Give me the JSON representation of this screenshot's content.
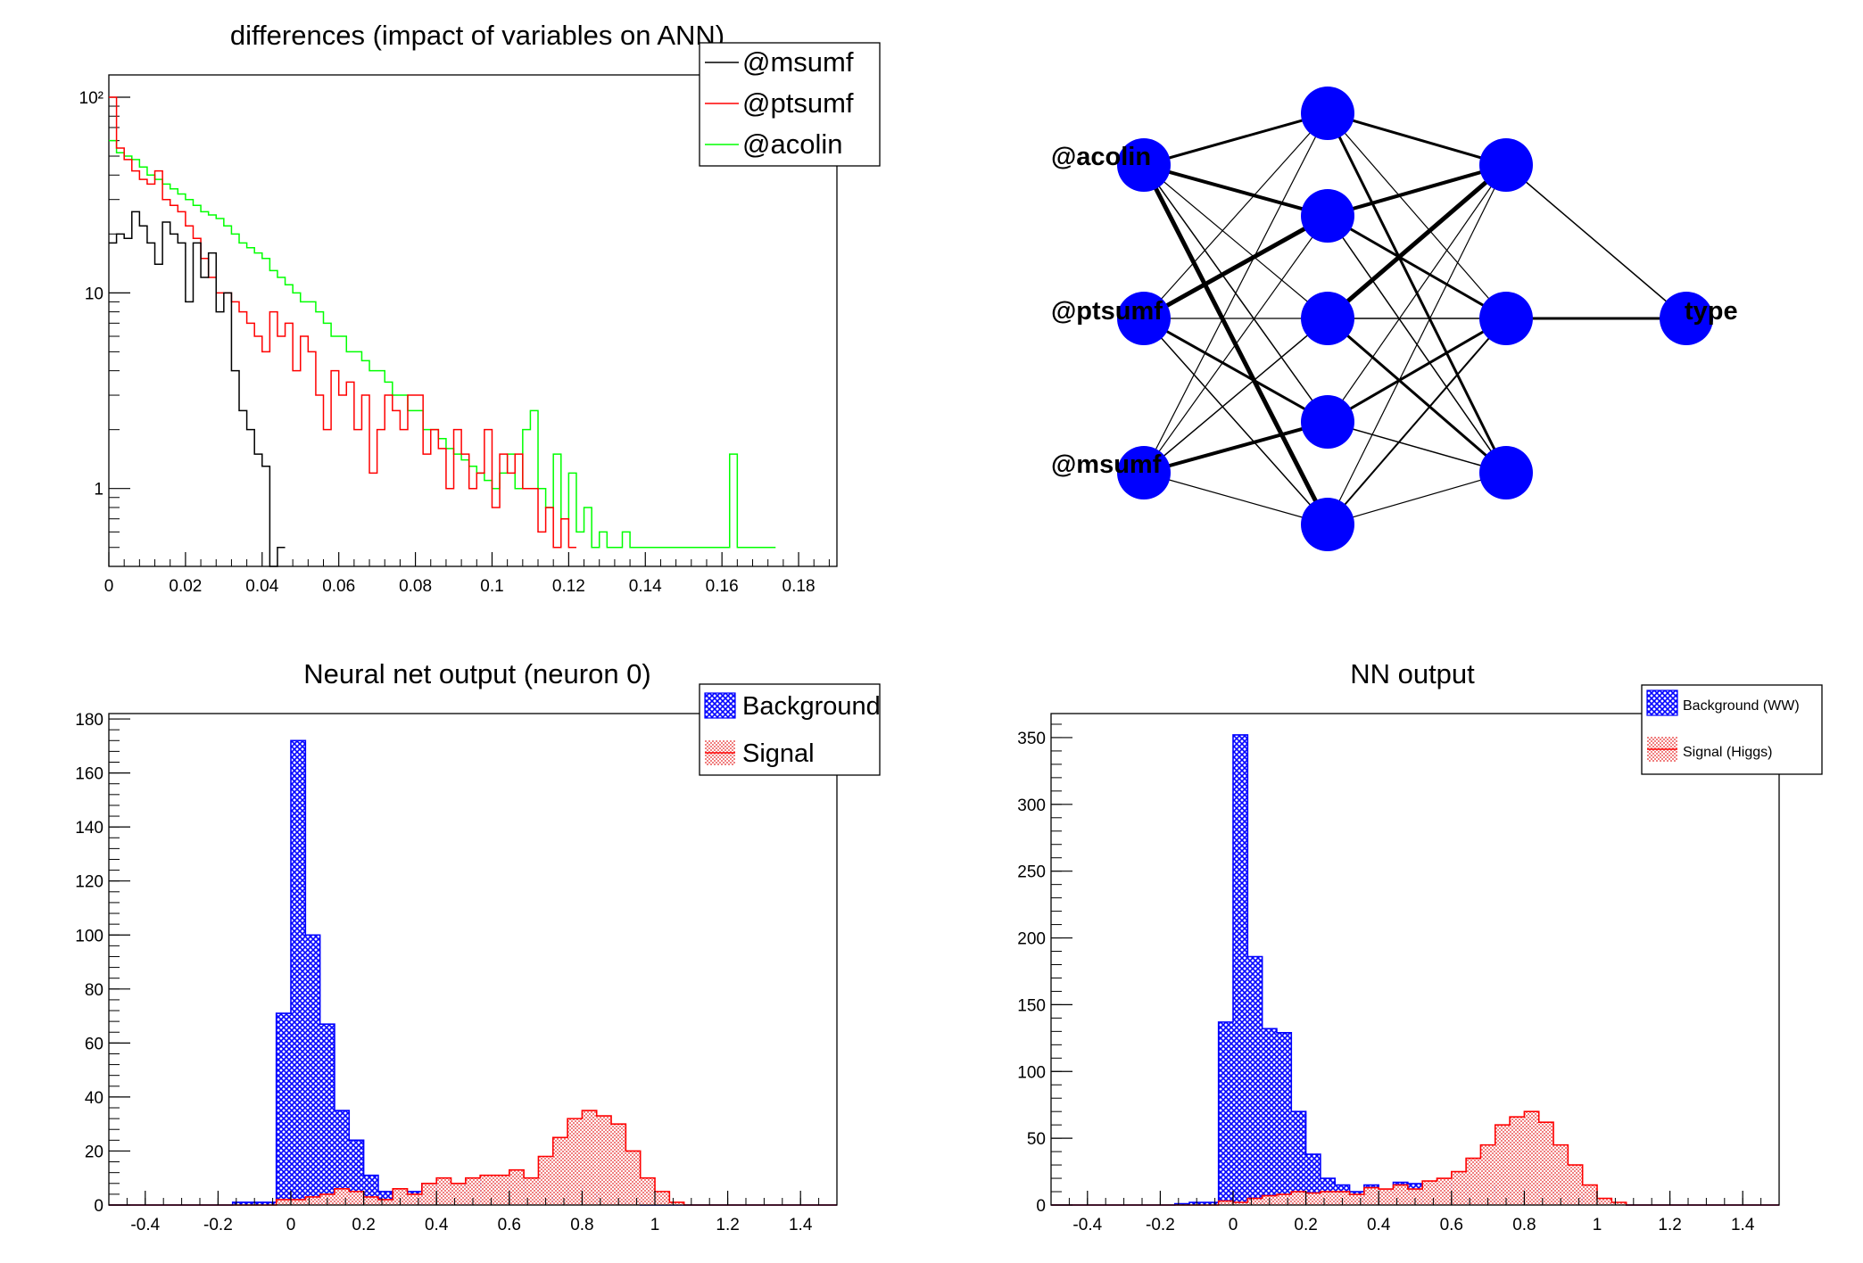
{
  "colors": {
    "black": "#000000",
    "red": "#ff0000",
    "green": "#00ff00",
    "blue": "#0000ff",
    "signal_fill": "#f08080",
    "bg_fill": "#2a2aff"
  },
  "chart_data": [
    {
      "type": "line",
      "title": "differences (impact of variables on ANN)",
      "xlabel": "",
      "ylabel": "",
      "xlim": [
        0,
        0.19
      ],
      "ylim": [
        0.4,
        130
      ],
      "log_y": true,
      "x_ticks": [
        "0",
        "0.02",
        "0.04",
        "0.06",
        "0.08",
        "0.1",
        "0.12",
        "0.14",
        "0.16",
        "0.18"
      ],
      "y_ticks": [
        "10²",
        "10",
        "1"
      ],
      "legend_position": "top-right",
      "bin_width": 0.002,
      "series": [
        {
          "name": "@msumf",
          "color": "#000000",
          "values": [
            18,
            20,
            19,
            26,
            22,
            18,
            14,
            23,
            20,
            18,
            9,
            18,
            12,
            16,
            8,
            10,
            4,
            2.5,
            2,
            1.5,
            1.3,
            0.4,
            0.5
          ]
        },
        {
          "name": "@ptsumf",
          "color": "#ff0000",
          "values": [
            100,
            55,
            48,
            42,
            38,
            36,
            42,
            30,
            28,
            26,
            22,
            19,
            15,
            12,
            10,
            10,
            9,
            8,
            7,
            6,
            5,
            8,
            6,
            7,
            4,
            6,
            5,
            3,
            2,
            4,
            3,
            3.5,
            2,
            3,
            1.2,
            2,
            3,
            2.5,
            2,
            3,
            3,
            1.5,
            2,
            1.6,
            1,
            2,
            1.5,
            1,
            1.2,
            2,
            0.8,
            1.5,
            1.2,
            1.5,
            1,
            1,
            0.6,
            0.8,
            0.5,
            0.7,
            0.5
          ]
        },
        {
          "name": "@acolin",
          "color": "#00ff00",
          "values": [
            60,
            52,
            50,
            48,
            44,
            40,
            38,
            36,
            34,
            32,
            30,
            28,
            26,
            25,
            24,
            22,
            20,
            18,
            17,
            16,
            15,
            13,
            12,
            11,
            10,
            9,
            9,
            8,
            7,
            6,
            6,
            5,
            5,
            4.5,
            4,
            4,
            3.5,
            3,
            3,
            2.5,
            2.5,
            2,
            2,
            1.8,
            1.6,
            1.5,
            1.4,
            1.3,
            1.2,
            1.1,
            1,
            1.2,
            1.5,
            1,
            2,
            2.5,
            1,
            0.8,
            1.5,
            0.7,
            1.2,
            0.6,
            0.8,
            0.5,
            0.6,
            0.5,
            0.5,
            0.6,
            0.5,
            0.5,
            0.5,
            0.5,
            0.5,
            0.5,
            0.5,
            0.5,
            0.5,
            0.5,
            0.5,
            0.5,
            0.5,
            1.5,
            0.5,
            0.5,
            0.5,
            0.5,
            0.5
          ]
        }
      ]
    },
    {
      "type": "diagram",
      "inputs": [
        "@acolin",
        "@ptsumf",
        "@msumf"
      ],
      "output": "type",
      "layers": [
        3,
        5,
        4,
        1
      ]
    },
    {
      "type": "histogram",
      "title": "Neural net output (neuron 0)",
      "xlabel": "",
      "ylabel": "",
      "xlim": [
        -0.5,
        1.5
      ],
      "ylim": [
        0,
        182
      ],
      "bin_width": 0.04,
      "bin_start": -0.16,
      "x_ticks": [
        "-0.4",
        "-0.2",
        "0",
        "0.2",
        "0.4",
        "0.6",
        "0.8",
        "1",
        "1.2",
        "1.4"
      ],
      "y_ticks": [
        "0",
        "20",
        "40",
        "60",
        "80",
        "100",
        "120",
        "140",
        "160",
        "180"
      ],
      "legend_position": "top-right",
      "series": [
        {
          "name": "Background",
          "color": "#0000ff",
          "values": [
            1,
            1,
            1,
            71,
            172,
            100,
            67,
            35,
            24,
            11,
            5,
            3,
            5,
            8,
            2,
            8,
            7,
            9,
            8,
            8,
            9,
            3,
            2,
            7,
            4,
            3,
            2,
            1,
            0,
            0,
            0
          ]
        },
        {
          "name": "Signal",
          "color": "#ff0000",
          "values": [
            0,
            0,
            0,
            2,
            2,
            3,
            4,
            6,
            5,
            3,
            2,
            6,
            4,
            8,
            10,
            8,
            10,
            11,
            11,
            13,
            10,
            18,
            25,
            32,
            35,
            33,
            30,
            20,
            10,
            5,
            1
          ]
        }
      ]
    },
    {
      "type": "histogram",
      "title": "NN output",
      "xlabel": "",
      "ylabel": "",
      "xlim": [
        -0.5,
        1.5
      ],
      "ylim": [
        0,
        368
      ],
      "bin_width": 0.04,
      "bin_start": -0.16,
      "x_ticks": [
        "-0.4",
        "-0.2",
        "0",
        "0.2",
        "0.4",
        "0.6",
        "0.8",
        "1",
        "1.2",
        "1.4"
      ],
      "y_ticks": [
        "0",
        "50",
        "100",
        "150",
        "200",
        "250",
        "300",
        "350"
      ],
      "legend_position": "top-right",
      "series": [
        {
          "name": "Background (WW)",
          "color": "#0000ff",
          "values": [
            1,
            2,
            2,
            137,
            352,
            186,
            132,
            129,
            70,
            38,
            20,
            15,
            10,
            15,
            8,
            17,
            16,
            14,
            14,
            16,
            14,
            14,
            12,
            13,
            10,
            12,
            7,
            7,
            4,
            2,
            1
          ]
        },
        {
          "name": "Signal (Higgs)",
          "color": "#ff0000",
          "values": [
            0,
            0,
            0,
            3,
            2,
            5,
            7,
            8,
            10,
            9,
            10,
            10,
            8,
            13,
            12,
            15,
            12,
            18,
            20,
            25,
            35,
            45,
            60,
            66,
            70,
            62,
            45,
            30,
            15,
            5,
            2
          ]
        }
      ]
    }
  ]
}
